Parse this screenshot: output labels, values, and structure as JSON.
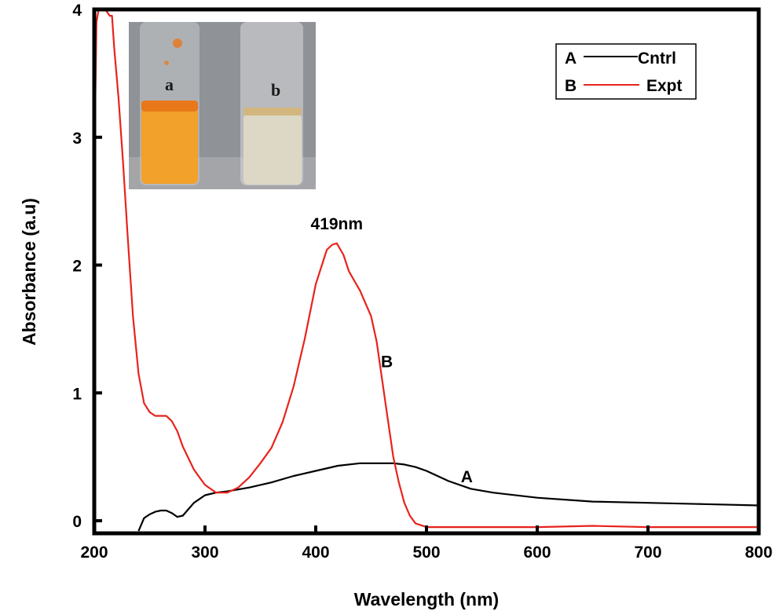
{
  "chart_data": {
    "type": "line",
    "xlabel": "Wavelength (nm)",
    "ylabel": "Absorbance (a.u)",
    "xlim": [
      200,
      800
    ],
    "ylim": [
      -0.1,
      4
    ],
    "x_ticks": [
      "200",
      "300",
      "400",
      "500",
      "600",
      "700",
      "800"
    ],
    "y_ticks": [
      "0",
      "1",
      "2",
      "3",
      "4"
    ],
    "grid": false,
    "legend_position": "top-right",
    "legend": [
      {
        "letter": "A",
        "label": "Cntrl",
        "color": "#000000"
      },
      {
        "letter": "B",
        "label": "Expt",
        "color": "#e8231c"
      }
    ],
    "series": [
      {
        "name": "Cntrl",
        "color": "#000000",
        "x": [
          240,
          245,
          250,
          255,
          260,
          265,
          270,
          275,
          280,
          285,
          290,
          300,
          310,
          320,
          340,
          360,
          380,
          400,
          420,
          440,
          460,
          470,
          480,
          490,
          500,
          520,
          540,
          560,
          600,
          650,
          700,
          750,
          800
        ],
        "y": [
          -0.08,
          0.02,
          0.05,
          0.07,
          0.08,
          0.08,
          0.06,
          0.03,
          0.04,
          0.09,
          0.14,
          0.2,
          0.22,
          0.23,
          0.26,
          0.3,
          0.35,
          0.39,
          0.43,
          0.45,
          0.45,
          0.45,
          0.44,
          0.42,
          0.39,
          0.31,
          0.25,
          0.22,
          0.18,
          0.15,
          0.14,
          0.13,
          0.12
        ]
      },
      {
        "name": "Expt",
        "color": "#e8231c",
        "x": [
          200,
          202,
          204,
          206,
          210,
          214,
          216,
          218,
          222,
          226,
          230,
          235,
          240,
          245,
          250,
          255,
          260,
          265,
          270,
          275,
          280,
          290,
          300,
          310,
          320,
          330,
          340,
          350,
          360,
          370,
          380,
          390,
          400,
          410,
          415,
          419,
          425,
          430,
          440,
          450,
          455,
          460,
          465,
          470,
          475,
          480,
          485,
          490,
          500,
          550,
          600,
          650,
          700,
          750,
          800
        ],
        "y": [
          2.75,
          3.9,
          4.0,
          4.0,
          4.0,
          3.95,
          3.95,
          3.7,
          3.3,
          2.8,
          2.25,
          1.6,
          1.15,
          0.92,
          0.85,
          0.82,
          0.82,
          0.82,
          0.78,
          0.7,
          0.58,
          0.4,
          0.28,
          0.22,
          0.22,
          0.26,
          0.34,
          0.45,
          0.57,
          0.77,
          1.05,
          1.42,
          1.85,
          2.12,
          2.16,
          2.17,
          2.08,
          1.95,
          1.8,
          1.6,
          1.4,
          1.1,
          0.8,
          0.5,
          0.3,
          0.14,
          0.04,
          -0.02,
          -0.05,
          -0.05,
          -0.05,
          -0.04,
          -0.05,
          -0.05,
          -0.05
        ]
      }
    ],
    "annotations": [
      {
        "text": "419nm",
        "x": 419,
        "y": 2.17
      },
      {
        "text": "B",
        "x": 460,
        "y": 1.2
      },
      {
        "text": "A",
        "x": 535,
        "y": 0.3
      }
    ],
    "inset_photo": {
      "labels": [
        "a",
        "b"
      ],
      "colors": {
        "background": "#8f9296",
        "solution_a": "#f2a12a",
        "ring_a": "#e9781a",
        "solution_b": "#ddd8c6",
        "ring_b": "#d3b67e"
      }
    }
  }
}
